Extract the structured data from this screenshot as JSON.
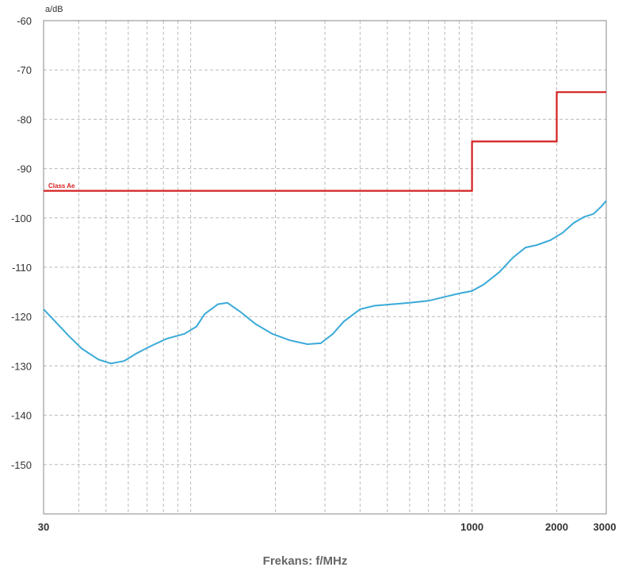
{
  "chart_data": {
    "type": "line",
    "ylabel": "a/dB",
    "xlabel": "Frekans: f/MHz",
    "x_scale": "log",
    "xlim": [
      30,
      3000
    ],
    "ylim": [
      -160,
      -60
    ],
    "x_tick_labels": [
      "30",
      "1000",
      "2000",
      "3000"
    ],
    "x_tick_values": [
      30,
      1000,
      2000,
      3000
    ],
    "y_ticks": [
      -60,
      -70,
      -80,
      -90,
      -100,
      -110,
      -120,
      -130,
      -140,
      -150
    ],
    "y_tick_labels": [
      "-60",
      "-70",
      "-80",
      "-90",
      "-100",
      "-110",
      "-120",
      "-130",
      "-140",
      "-150"
    ],
    "grid": true,
    "limit_line": {
      "label": "Class Ae",
      "color": "#d42020",
      "points": [
        [
          30,
          -94.5
        ],
        [
          1000,
          -94.5
        ],
        [
          1000,
          -84.5
        ],
        [
          2000,
          -84.5
        ],
        [
          2000,
          -74.5
        ],
        [
          3000,
          -74.5
        ]
      ]
    },
    "measurement": {
      "color": "#3aaad8",
      "points": [
        [
          30,
          -118.5
        ],
        [
          33,
          -121
        ],
        [
          37,
          -124
        ],
        [
          41,
          -126.5
        ],
        [
          47,
          -128.7
        ],
        [
          52,
          -129.5
        ],
        [
          58,
          -129
        ],
        [
          64,
          -127.5
        ],
        [
          72,
          -126
        ],
        [
          82,
          -124.5
        ],
        [
          95,
          -123.5
        ],
        [
          105,
          -122
        ],
        [
          112,
          -119.5
        ],
        [
          125,
          -117.5
        ],
        [
          135,
          -117.2
        ],
        [
          150,
          -119
        ],
        [
          170,
          -121.5
        ],
        [
          195,
          -123.5
        ],
        [
          225,
          -124.8
        ],
        [
          260,
          -125.6
        ],
        [
          290,
          -125.4
        ],
        [
          320,
          -123.5
        ],
        [
          350,
          -121
        ],
        [
          400,
          -118.5
        ],
        [
          450,
          -117.8
        ],
        [
          520,
          -117.5
        ],
        [
          600,
          -117.2
        ],
        [
          700,
          -116.8
        ],
        [
          800,
          -116
        ],
        [
          900,
          -115.3
        ],
        [
          1000,
          -114.8
        ],
        [
          1100,
          -113.5
        ],
        [
          1250,
          -111
        ],
        [
          1400,
          -108
        ],
        [
          1550,
          -106
        ],
        [
          1700,
          -105.5
        ],
        [
          1900,
          -104.5
        ],
        [
          2100,
          -103
        ],
        [
          2300,
          -101
        ],
        [
          2500,
          -99.8
        ],
        [
          2700,
          -99.2
        ],
        [
          2900,
          -97.5
        ],
        [
          3000,
          -96.5
        ]
      ]
    }
  }
}
